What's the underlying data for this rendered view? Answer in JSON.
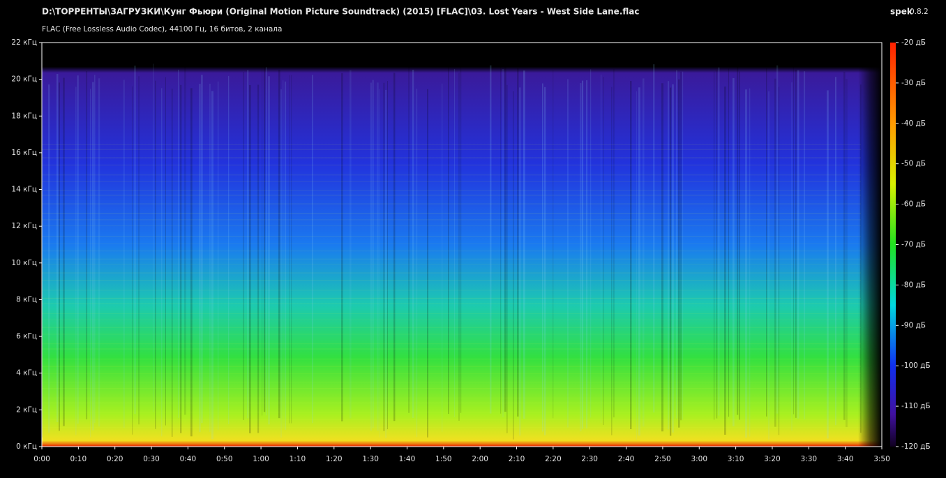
{
  "chart_data": {
    "type": "spectrogram",
    "title": "D:\\ТОРРЕНТЫ\\ЗАГРУЗКИ\\Кунг Фьюри (Original Motion Picture Soundtrack) (2015) [FLAC]\\03. Lost Years - West Side Lane.flac",
    "subtitle": "FLAC (Free Lossless Audio Codec), 44100 Гц, 16 битов, 2 канала",
    "app_name": "spek",
    "app_version": "0.8.2",
    "xlim": [
      0,
      230
    ],
    "xticks": [
      {
        "value": 0,
        "label": "0:00"
      },
      {
        "value": 10,
        "label": "0:10"
      },
      {
        "value": 20,
        "label": "0:20"
      },
      {
        "value": 30,
        "label": "0:30"
      },
      {
        "value": 40,
        "label": "0:40"
      },
      {
        "value": 50,
        "label": "0:50"
      },
      {
        "value": 60,
        "label": "1:00"
      },
      {
        "value": 70,
        "label": "1:10"
      },
      {
        "value": 80,
        "label": "1:20"
      },
      {
        "value": 90,
        "label": "1:30"
      },
      {
        "value": 100,
        "label": "1:40"
      },
      {
        "value": 110,
        "label": "1:50"
      },
      {
        "value": 120,
        "label": "2:00"
      },
      {
        "value": 130,
        "label": "2:10"
      },
      {
        "value": 140,
        "label": "2:20"
      },
      {
        "value": 150,
        "label": "2:30"
      },
      {
        "value": 160,
        "label": "2:40"
      },
      {
        "value": 170,
        "label": "2:50"
      },
      {
        "value": 180,
        "label": "3:00"
      },
      {
        "value": 190,
        "label": "3:10"
      },
      {
        "value": 200,
        "label": "3:20"
      },
      {
        "value": 210,
        "label": "3:30"
      },
      {
        "value": 220,
        "label": "3:40"
      },
      {
        "value": 230,
        "label": "3:50"
      }
    ],
    "ylim": [
      0,
      22
    ],
    "yticks": [
      {
        "value": 0,
        "label": "0 кГц"
      },
      {
        "value": 2,
        "label": "2 кГц"
      },
      {
        "value": 4,
        "label": "4 кГц"
      },
      {
        "value": 6,
        "label": "6 кГц"
      },
      {
        "value": 8,
        "label": "8 кГц"
      },
      {
        "value": 10,
        "label": "10 кГц"
      },
      {
        "value": 12,
        "label": "12 кГц"
      },
      {
        "value": 14,
        "label": "14 кГц"
      },
      {
        "value": 16,
        "label": "16 кГц"
      },
      {
        "value": 18,
        "label": "18 кГц"
      },
      {
        "value": 20,
        "label": "20 кГц"
      },
      {
        "value": 22,
        "label": "22 кГц"
      }
    ],
    "zlim": [
      -120,
      -20
    ],
    "zticks": [
      {
        "value": -20,
        "label": "-20 дБ"
      },
      {
        "value": -30,
        "label": "-30 дБ"
      },
      {
        "value": -40,
        "label": "-40 дБ"
      },
      {
        "value": -50,
        "label": "-50 дБ"
      },
      {
        "value": -60,
        "label": "-60 дБ"
      },
      {
        "value": -70,
        "label": "-70 дБ"
      },
      {
        "value": -80,
        "label": "-80 дБ"
      },
      {
        "value": -90,
        "label": "-90 дБ"
      },
      {
        "value": -100,
        "label": "-100 дБ"
      },
      {
        "value": -110,
        "label": "-110 дБ"
      },
      {
        "value": -120,
        "label": "-120 дБ"
      }
    ]
  }
}
